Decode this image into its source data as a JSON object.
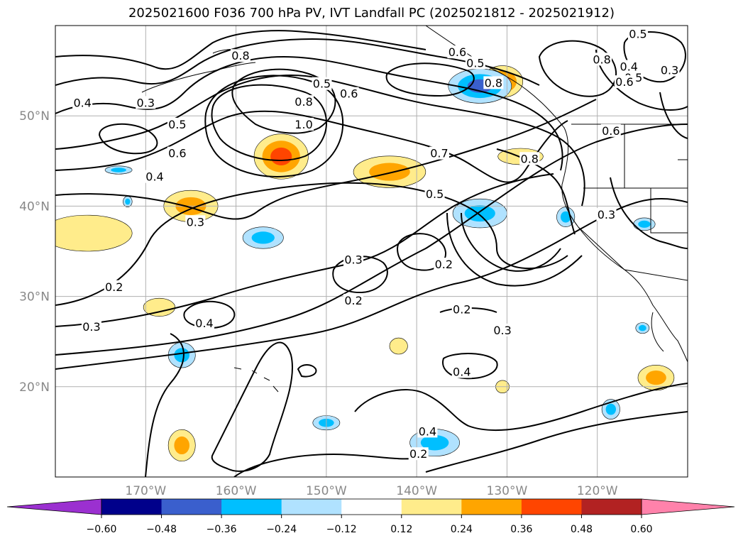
{
  "title": "2025021600 F036 700 hPa PV, IVT Landfall PC (2025021812 - 2025021912)",
  "chart_data": {
    "type": "contour_map",
    "title": "2025021600 F036 700 hPa PV, IVT Landfall PC (2025021812 - 2025021912)",
    "lon_range": [
      -180,
      -110
    ],
    "lat_range": [
      10,
      60
    ],
    "lon_ticks": [
      {
        "value": -170,
        "label": "170°W"
      },
      {
        "value": -160,
        "label": "160°W"
      },
      {
        "value": -150,
        "label": "150°W"
      },
      {
        "value": -140,
        "label": "140°W"
      },
      {
        "value": -130,
        "label": "130°W"
      },
      {
        "value": -120,
        "label": "120°W"
      }
    ],
    "lat_ticks": [
      {
        "value": 50,
        "label": "50°N"
      },
      {
        "value": 40,
        "label": "40°N"
      },
      {
        "value": 30,
        "label": "30°N"
      },
      {
        "value": 20,
        "label": "20°N"
      }
    ],
    "grid": true,
    "pv_contour_labels": [
      {
        "text": "0.8",
        "lon": -159.5,
        "lat": 56.6
      },
      {
        "text": "0.6",
        "lon": -135.5,
        "lat": 57.0
      },
      {
        "text": "0.5",
        "lon": -133.5,
        "lat": 55.8
      },
      {
        "text": "0.5",
        "lon": -150.5,
        "lat": 53.5
      },
      {
        "text": "0.6",
        "lon": -147.5,
        "lat": 52.4
      },
      {
        "text": "0.8",
        "lon": -131.5,
        "lat": 53.6
      },
      {
        "text": "0.8",
        "lon": -152.5,
        "lat": 51.5
      },
      {
        "text": "0.4",
        "lon": -177,
        "lat": 51.4
      },
      {
        "text": "0.3",
        "lon": -170,
        "lat": 51.4
      },
      {
        "text": "0.5",
        "lon": -166.5,
        "lat": 49.0
      },
      {
        "text": "1.0",
        "lon": -152.5,
        "lat": 49.0
      },
      {
        "text": "0.6",
        "lon": -166.5,
        "lat": 45.8
      },
      {
        "text": "0.4",
        "lon": -169,
        "lat": 43.2
      },
      {
        "text": "0.7",
        "lon": -137.5,
        "lat": 45.8
      },
      {
        "text": "0.8",
        "lon": -127.5,
        "lat": 45.2
      },
      {
        "text": "0.5",
        "lon": -138,
        "lat": 41.3
      },
      {
        "text": "0.3",
        "lon": -164.5,
        "lat": 38.2
      },
      {
        "text": "0.3",
        "lon": -147,
        "lat": 34.0
      },
      {
        "text": "0.2",
        "lon": -173.5,
        "lat": 31.0
      },
      {
        "text": "0.2",
        "lon": -137,
        "lat": 33.5
      },
      {
        "text": "0.2",
        "lon": -147,
        "lat": 29.5
      },
      {
        "text": "0.2",
        "lon": -135,
        "lat": 28.5
      },
      {
        "text": "0.3",
        "lon": -176,
        "lat": 26.6
      },
      {
        "text": "0.4",
        "lon": -163.5,
        "lat": 27.0
      },
      {
        "text": "0.3",
        "lon": -130.5,
        "lat": 26.2
      },
      {
        "text": "0.4",
        "lon": -135,
        "lat": 21.6
      },
      {
        "text": "0.4",
        "lon": -138.8,
        "lat": 15.0
      },
      {
        "text": "0.2",
        "lon": -139.8,
        "lat": 12.5
      },
      {
        "text": "0.8",
        "lon": -119.5,
        "lat": 56.2
      },
      {
        "text": "0.5",
        "lon": -115.5,
        "lat": 59.0
      },
      {
        "text": "0.4",
        "lon": -116.5,
        "lat": 55.4
      },
      {
        "text": "0.5",
        "lon": -116,
        "lat": 54.2
      },
      {
        "text": "0.6",
        "lon": -117,
        "lat": 53.7
      },
      {
        "text": "0.3",
        "lon": -112,
        "lat": 55.0
      },
      {
        "text": "0.6",
        "lon": -118.5,
        "lat": 48.3
      },
      {
        "text": "0.3",
        "lon": -119,
        "lat": 39.0
      }
    ],
    "ivt_pc_fill": [
      {
        "sign": "positive",
        "max": 0.48,
        "lon": -155,
        "lat": 45.5,
        "w": 6,
        "h": 5
      },
      {
        "sign": "positive",
        "max": 0.48,
        "lon": -130.5,
        "lat": 53.8,
        "w": 4.5,
        "h": 3.5
      },
      {
        "sign": "positive",
        "max": 0.36,
        "lon": -143,
        "lat": 43.8,
        "w": 8,
        "h": 3.5
      },
      {
        "sign": "positive",
        "max": 0.36,
        "lon": -165,
        "lat": 40,
        "w": 6,
        "h": 3.5
      },
      {
        "sign": "positive",
        "max": 0.24,
        "lon": -176.5,
        "lat": 37,
        "w": 10,
        "h": 4
      },
      {
        "sign": "positive",
        "max": 0.24,
        "lon": -128.5,
        "lat": 45.5,
        "w": 5,
        "h": 1.8
      },
      {
        "sign": "positive",
        "max": 0.24,
        "lon": -168.5,
        "lat": 28.8,
        "w": 3.5,
        "h": 2
      },
      {
        "sign": "positive",
        "max": 0.36,
        "lon": -166,
        "lat": 13.5,
        "w": 3,
        "h": 3.5
      },
      {
        "sign": "positive",
        "max": 0.36,
        "lon": -113.5,
        "lat": 21,
        "w": 4,
        "h": 2.8
      },
      {
        "sign": "positive",
        "max": 0.24,
        "lon": -142,
        "lat": 24.5,
        "w": 2,
        "h": 1.8
      },
      {
        "sign": "positive",
        "max": 0.24,
        "lon": -130.5,
        "lat": 20,
        "w": 1.5,
        "h": 1.4
      },
      {
        "sign": "negative",
        "min": -0.48,
        "lon": -133,
        "lat": 53.3,
        "w": 7,
        "h": 3.8
      },
      {
        "sign": "negative",
        "min": -0.36,
        "lon": -133,
        "lat": 39.2,
        "w": 6,
        "h": 3.2
      },
      {
        "sign": "negative",
        "min": -0.36,
        "lon": -138,
        "lat": 13.8,
        "w": 5.5,
        "h": 3
      },
      {
        "sign": "negative",
        "min": -0.36,
        "lon": -166,
        "lat": 23.5,
        "w": 3,
        "h": 2.8
      },
      {
        "sign": "negative",
        "min": -0.36,
        "lon": -157,
        "lat": 36.5,
        "w": 4.5,
        "h": 2.4
      },
      {
        "sign": "negative",
        "min": -0.36,
        "lon": -118.5,
        "lat": 17.5,
        "w": 2,
        "h": 2.2
      },
      {
        "sign": "negative",
        "min": -0.36,
        "lon": -123.5,
        "lat": 38.8,
        "w": 2,
        "h": 2.2
      },
      {
        "sign": "negative",
        "min": -0.36,
        "lon": -114.8,
        "lat": 38,
        "w": 2.4,
        "h": 1.4
      },
      {
        "sign": "negative",
        "min": -0.36,
        "lon": -150,
        "lat": 16,
        "w": 3,
        "h": 1.6
      },
      {
        "sign": "negative",
        "min": -0.36,
        "lon": -173,
        "lat": 44,
        "w": 3,
        "h": 0.9
      },
      {
        "sign": "negative",
        "min": -0.36,
        "lon": -115,
        "lat": 26.5,
        "w": 1.5,
        "h": 1.2
      },
      {
        "sign": "negative",
        "min": -0.36,
        "lon": -172,
        "lat": 40.5,
        "w": 1,
        "h": 1.2
      }
    ]
  },
  "colorbar": {
    "levels": [
      -0.6,
      -0.48,
      -0.36,
      -0.24,
      -0.12,
      0.12,
      0.24,
      0.36,
      0.48,
      0.6
    ],
    "labels": [
      "−0.60",
      "−0.48",
      "−0.36",
      "−0.24",
      "−0.12",
      "0.12",
      "0.24",
      "0.36",
      "0.48",
      "0.60"
    ],
    "colors": [
      "#9b30d0",
      "#00008b",
      "#3a5fcd",
      "#00bfff",
      "#b0e2ff",
      "#ffffff",
      "#ffec8b",
      "#ffa500",
      "#ff4500",
      "#b22222",
      "#ff82ab"
    ],
    "extend": "both"
  }
}
